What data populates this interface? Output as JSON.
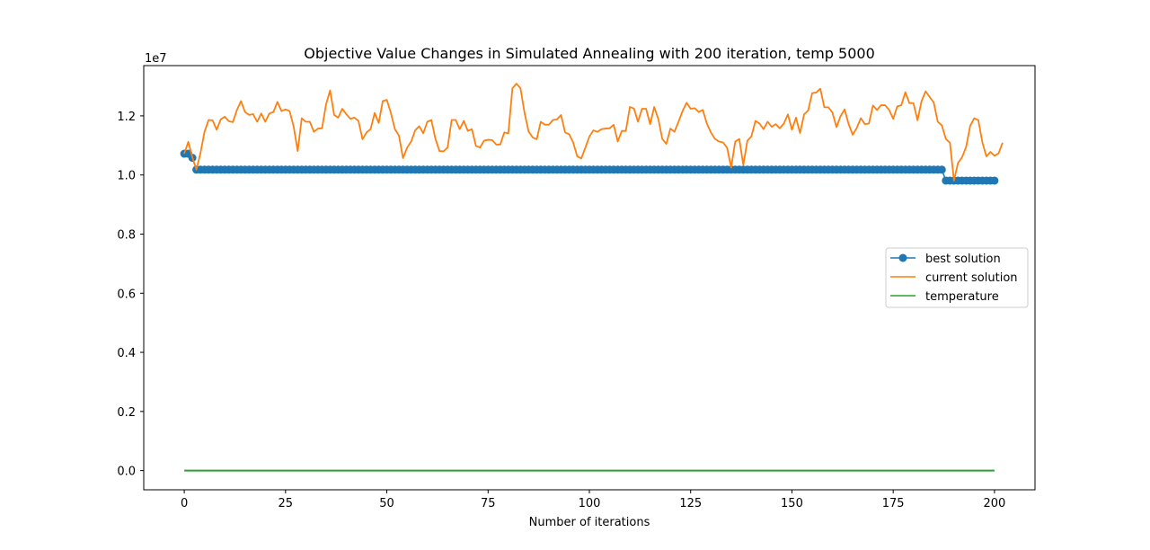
{
  "chart_data": {
    "type": "line",
    "title": "Objective Value Changes in Simulated Annealing with 200 iteration, temp 5000",
    "xlabel": "Number of iterations",
    "ylabel": "",
    "y_offset_label": "1e7",
    "xlim": [
      -10,
      210
    ],
    "ylim": [
      -0.065,
      1.37
    ],
    "xticks": [
      0,
      25,
      50,
      75,
      100,
      125,
      150,
      175,
      200
    ],
    "xtick_labels": [
      "0",
      "25",
      "50",
      "75",
      "100",
      "125",
      "150",
      "175",
      "200"
    ],
    "yticks": [
      0.0,
      0.2,
      0.4,
      0.6,
      0.8,
      1.0,
      1.2
    ],
    "ytick_labels": [
      "0.0",
      "0.2",
      "0.4",
      "0.6",
      "0.8",
      "1.0",
      "1.2"
    ],
    "grid": false,
    "legend_position": "center-right",
    "series": [
      {
        "name": "best solution",
        "color": "#1f77b4",
        "marker": "circle",
        "segments": [
          {
            "x_start": 0,
            "x_end": 0,
            "y": 1.072
          },
          {
            "x_start": 1,
            "x_end": 1,
            "y": 1.072
          },
          {
            "x_start": 2,
            "x_end": 2,
            "y": 1.058
          },
          {
            "x_start": 3,
            "x_end": 187,
            "y": 1.018
          },
          {
            "x_start": 188,
            "x_end": 200,
            "y": 0.981
          }
        ]
      },
      {
        "name": "current solution",
        "color": "#ff7f0e",
        "marker": "none",
        "y_values": [
          1.072,
          1.112,
          1.06,
          1.018,
          1.074,
          1.146,
          1.186,
          1.185,
          1.153,
          1.188,
          1.197,
          1.182,
          1.179,
          1.22,
          1.25,
          1.213,
          1.203,
          1.206,
          1.18,
          1.208,
          1.18,
          1.208,
          1.213,
          1.247,
          1.216,
          1.222,
          1.216,
          1.164,
          1.081,
          1.192,
          1.18,
          1.18,
          1.146,
          1.157,
          1.158,
          1.239,
          1.286,
          1.203,
          1.194,
          1.224,
          1.206,
          1.19,
          1.194,
          1.183,
          1.121,
          1.144,
          1.155,
          1.21,
          1.176,
          1.25,
          1.254,
          1.21,
          1.155,
          1.133,
          1.057,
          1.092,
          1.113,
          1.151,
          1.165,
          1.141,
          1.18,
          1.186,
          1.122,
          1.081,
          1.08,
          1.093,
          1.186,
          1.186,
          1.155,
          1.183,
          1.149,
          1.155,
          1.098,
          1.093,
          1.116,
          1.119,
          1.118,
          1.103,
          1.103,
          1.144,
          1.141,
          1.293,
          1.309,
          1.293,
          1.21,
          1.147,
          1.127,
          1.121,
          1.18,
          1.17,
          1.17,
          1.186,
          1.188,
          1.203,
          1.144,
          1.138,
          1.11,
          1.063,
          1.056,
          1.092,
          1.13,
          1.151,
          1.146,
          1.155,
          1.157,
          1.158,
          1.17,
          1.113,
          1.149,
          1.149,
          1.23,
          1.225,
          1.18,
          1.224,
          1.224,
          1.172,
          1.23,
          1.19,
          1.122,
          1.105,
          1.157,
          1.146,
          1.18,
          1.216,
          1.244,
          1.224,
          1.226,
          1.213,
          1.22,
          1.174,
          1.144,
          1.122,
          1.113,
          1.11,
          1.092,
          1.025,
          1.113,
          1.122,
          1.034,
          1.116,
          1.131,
          1.183,
          1.174,
          1.155,
          1.18,
          1.163,
          1.172,
          1.158,
          1.174,
          1.205,
          1.153,
          1.194,
          1.142,
          1.205,
          1.218,
          1.277,
          1.279,
          1.292,
          1.229,
          1.229,
          1.211,
          1.162,
          1.199,
          1.222,
          1.172,
          1.136,
          1.159,
          1.192,
          1.172,
          1.174,
          1.235,
          1.22,
          1.236,
          1.236,
          1.22,
          1.19,
          1.232,
          1.236,
          1.28,
          1.243,
          1.243,
          1.185,
          1.25,
          1.283,
          1.264,
          1.245,
          1.18,
          1.168,
          1.122,
          1.109,
          0.981,
          1.041,
          1.06,
          1.095,
          1.166,
          1.192,
          1.186,
          1.111,
          1.063,
          1.078,
          1.065,
          1.073,
          1.109
        ]
      },
      {
        "name": "temperature",
        "color": "#2ca02c",
        "marker": "none",
        "x_range": [
          0,
          200
        ],
        "y_constant": 0.0
      }
    ]
  }
}
